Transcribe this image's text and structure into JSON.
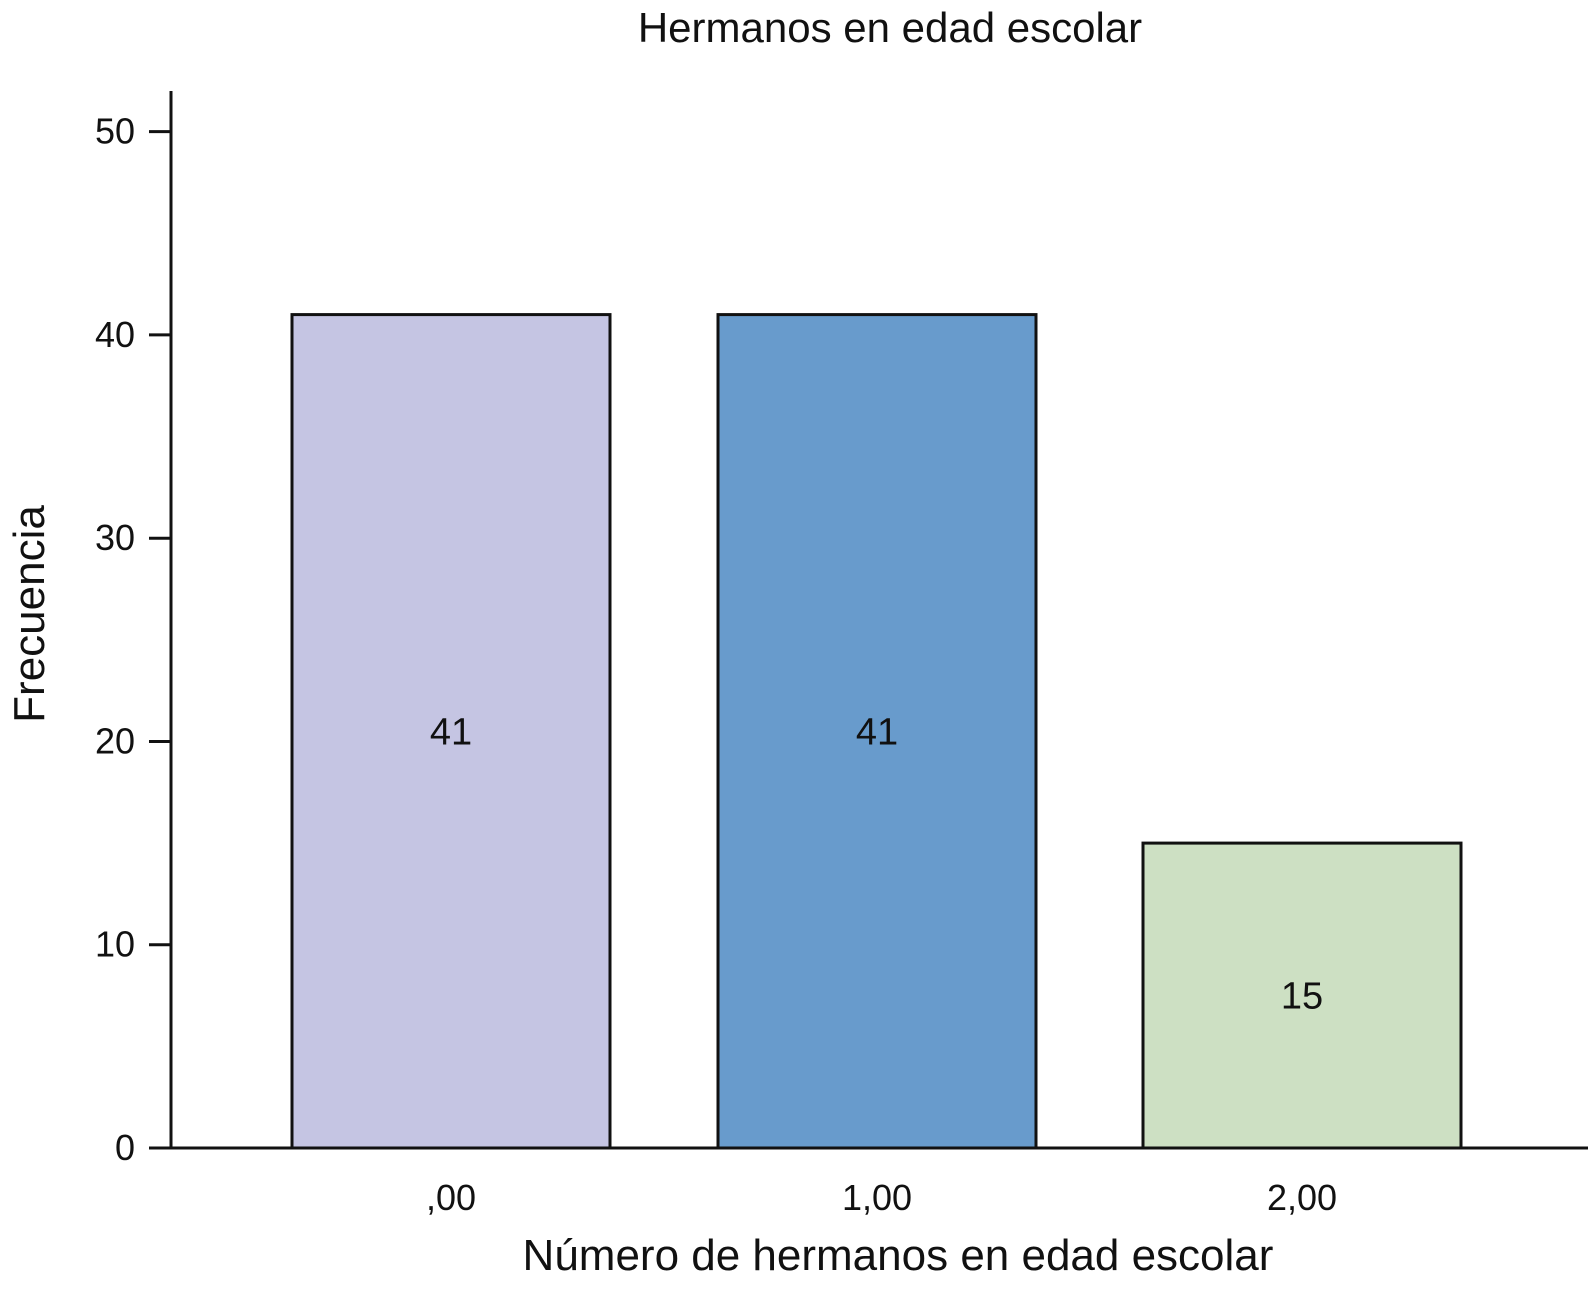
{
  "chart_data": {
    "type": "bar",
    "title": "Hermanos en edad escolar",
    "xlabel": "Número de hermanos en edad escolar",
    "ylabel": "Frecuencia",
    "categories": [
      ",00",
      "1,00",
      "2,00"
    ],
    "values": [
      41,
      41,
      15
    ],
    "data_labels": [
      "41",
      "41",
      "15"
    ],
    "colors": [
      "#c5c5e3",
      "#689bcc",
      "#cde0c3"
    ],
    "ylim": [
      0,
      52
    ],
    "yticks": [
      0,
      10,
      20,
      30,
      40,
      50
    ],
    "ytick_labels": [
      "0",
      "10",
      "20",
      "30",
      "40",
      "50"
    ],
    "grid": false,
    "legend": false
  }
}
